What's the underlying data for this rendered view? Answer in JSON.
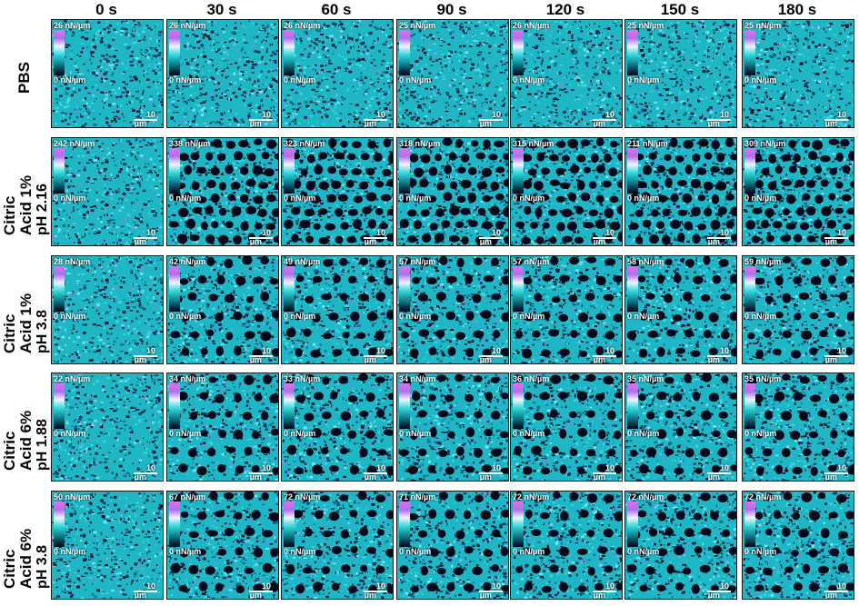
{
  "columns": [
    "0 s",
    "30 s",
    "60 s",
    "90 s",
    "120 s",
    "150 s",
    "180 s"
  ],
  "rows": [
    {
      "label": [
        "PBS"
      ],
      "max": [
        "26 nN/µm",
        "26 nN/µm",
        "26 nN/µm",
        "25 nN/µm",
        "26 nN/µm",
        "25 nN/µm",
        "25 nN/µm"
      ],
      "min": "0 nN/µm"
    },
    {
      "label": [
        "Citric",
        "Acid 1%",
        "pH 2.16"
      ],
      "max": [
        "242 nN/µm",
        "338 nN/µm",
        "323 nN/µm",
        "318 nN/µm",
        "315 nN/µm",
        "211 nN/µm",
        "309 nN/µm"
      ],
      "min": "0 nN/µm"
    },
    {
      "label": [
        "Citric",
        "Acid 1%",
        "pH 3.8"
      ],
      "max": [
        "28 nN/µm",
        "42 nN/µm",
        "49 nN/µm",
        "57 nN/µm",
        "57 nN/µm",
        "58 nN/µm",
        "59 nN/µm"
      ],
      "min": "0 nN/µm"
    },
    {
      "label": [
        "Citric",
        "Acid 6%",
        "pH 1.88"
      ],
      "max": [
        "22 nN/µm",
        "34 nN/µm",
        "33 nN/µm",
        "34 nN/µm",
        "36 nN/µm",
        "35 nN/µm",
        "35 nN/µm"
      ],
      "min": "0 nN/µm"
    },
    {
      "label": [
        "Citric",
        "Acid 6%",
        "pH 3.8"
      ],
      "max": [
        "50 nN/µm",
        "67 nN/µm",
        "72 nN/µm",
        "71 nN/µm",
        "72 nN/µm",
        "72 nN/µm",
        "72 nN/µm"
      ],
      "min": "0 nN/µm"
    }
  ],
  "scalebar": {
    "value": "10",
    "unit": "µm"
  },
  "colormap": [
    "#e070f0",
    "#b070e8",
    "#f0f4ff",
    "#30d8d8",
    "#108090",
    "#000010"
  ]
}
